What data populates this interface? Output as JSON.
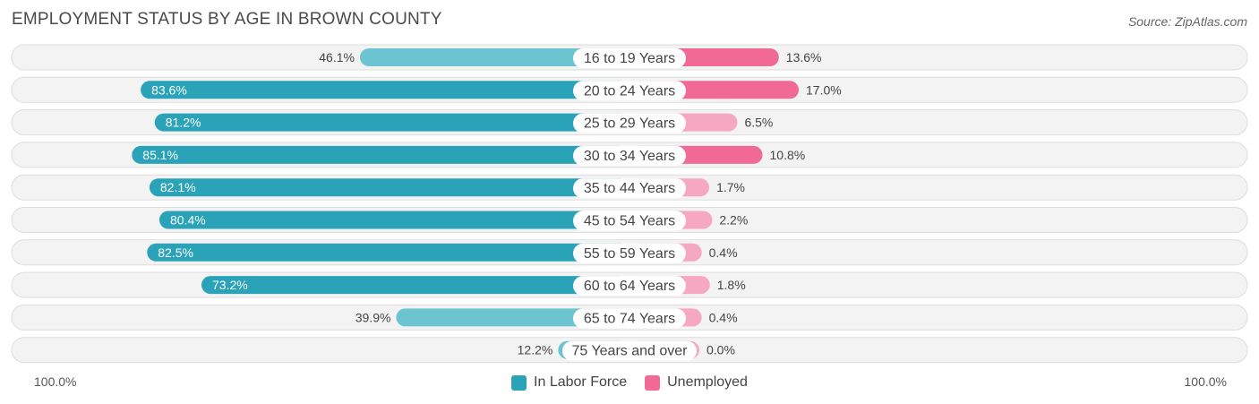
{
  "title": "EMPLOYMENT STATUS BY AGE IN BROWN COUNTY",
  "source": "Source: ZipAtlas.com",
  "chart_data": {
    "type": "bar",
    "orientation": "horizontal-diverging",
    "categories": [
      "16 to 19 Years",
      "20 to 24 Years",
      "25 to 29 Years",
      "30 to 34 Years",
      "35 to 44 Years",
      "45 to 54 Years",
      "55 to 59 Years",
      "60 to 64 Years",
      "65 to 74 Years",
      "75 Years and over"
    ],
    "series": [
      {
        "name": "In Labor Force",
        "side": "left",
        "color": "#2aa3b8",
        "color_light": "#6cc4d0",
        "values": [
          46.1,
          83.6,
          81.2,
          85.1,
          82.1,
          80.4,
          82.5,
          73.2,
          39.9,
          12.2
        ],
        "labels": [
          "46.1%",
          "83.6%",
          "81.2%",
          "85.1%",
          "82.1%",
          "80.4%",
          "82.5%",
          "73.2%",
          "39.9%",
          "12.2%"
        ]
      },
      {
        "name": "Unemployed",
        "side": "right",
        "color": "#f06a95",
        "color_light": "#f6a7c1",
        "values": [
          13.6,
          17.0,
          6.5,
          10.8,
          1.7,
          2.2,
          0.4,
          1.8,
          0.4,
          0.0
        ],
        "labels": [
          "13.6%",
          "17.0%",
          "6.5%",
          "10.8%",
          "1.7%",
          "2.2%",
          "0.4%",
          "1.8%",
          "0.4%",
          "0.0%"
        ]
      }
    ],
    "axis_left_label": "100.0%",
    "axis_right_label": "100.0%",
    "xlim": [
      0,
      100
    ],
    "legend_position": "bottom-center"
  }
}
